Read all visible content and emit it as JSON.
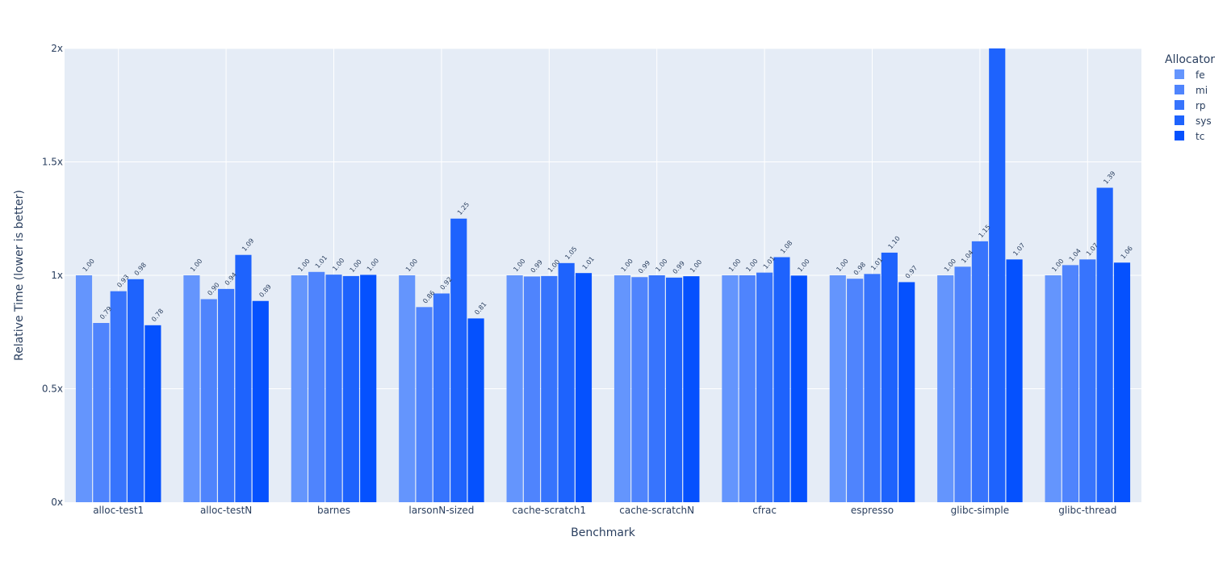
{
  "chart_data": {
    "type": "bar",
    "title": "",
    "xlabel": "Benchmark",
    "ylabel": "Relative Time (lower is better)",
    "ylim": [
      0,
      2
    ],
    "yticks": [
      {
        "value": 0,
        "label": "0x"
      },
      {
        "value": 0.5,
        "label": "0.5x"
      },
      {
        "value": 1,
        "label": "1x"
      },
      {
        "value": 1.5,
        "label": "1.5x"
      },
      {
        "value": 2,
        "label": "2x"
      }
    ],
    "grid": true,
    "legend": {
      "title": "Allocator",
      "placement": "top-right, outside"
    },
    "categories": [
      "alloc-test1",
      "alloc-testN",
      "barnes",
      "larsonN-sized",
      "cache-scratch1",
      "cache-scratchN",
      "cfrac",
      "espresso",
      "glibc-simple",
      "glibc-thread"
    ],
    "series": [
      {
        "name": "fe",
        "color": "#6495fd",
        "values": [
          1.0,
          1.0,
          1.0,
          1.0,
          1.0,
          1.0,
          1.0,
          1.0,
          1.0,
          1.0
        ],
        "labels": [
          "1.00",
          "1.00",
          "1.00",
          "1.00",
          "1.00",
          "1.00",
          "1.00",
          "1.00",
          "1.00",
          "1.00"
        ]
      },
      {
        "name": "mi",
        "color": "#4f84fd",
        "values": [
          0.79,
          0.895,
          1.015,
          0.86,
          0.995,
          0.992,
          1.0,
          0.985,
          1.038,
          1.045
        ],
        "labels": [
          "0.79",
          "0.90",
          "1.01",
          "0.86",
          "0.99",
          "0.99",
          "1.00",
          "0.98",
          "1.04",
          "1.04"
        ]
      },
      {
        "name": "rp",
        "color": "#3774fd",
        "values": [
          0.93,
          0.94,
          1.003,
          0.92,
          0.997,
          1.0,
          1.012,
          1.006,
          1.15,
          1.07
        ],
        "labels": [
          "0.93",
          "0.94",
          "1.00",
          "0.92",
          "1.00",
          "1.00",
          "1.01",
          "1.01",
          "1.15",
          "1.07"
        ]
      },
      {
        "name": "sys",
        "color": "#1e63fd",
        "values": [
          0.983,
          1.09,
          0.997,
          1.25,
          1.054,
          0.99,
          1.08,
          1.1,
          2.0,
          1.386
        ],
        "labels": [
          "0.98",
          "1.09",
          "1.00",
          "1.25",
          "1.05",
          "0.99",
          "1.08",
          "1.10",
          "",
          "1.39"
        ]
      },
      {
        "name": "tc",
        "color": "#0551fe",
        "values": [
          0.78,
          0.887,
          1.002,
          0.81,
          1.01,
          0.996,
          0.999,
          0.97,
          1.07,
          1.056
        ],
        "labels": [
          "0.78",
          "0.89",
          "1.00",
          "0.81",
          "1.01",
          "1.00",
          "1.00",
          "0.97",
          "1.07",
          "1.06"
        ]
      }
    ]
  }
}
